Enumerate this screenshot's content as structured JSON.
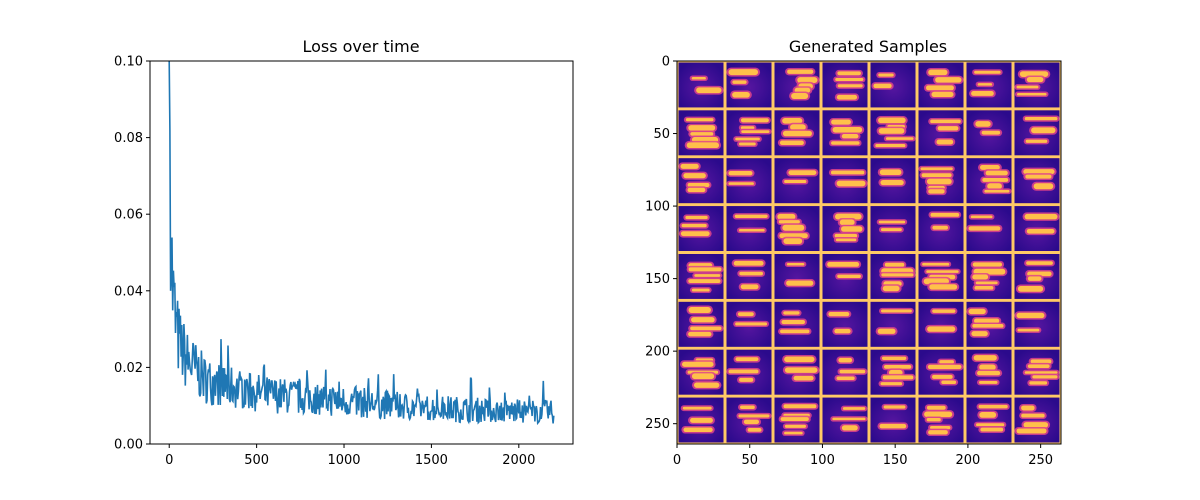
{
  "colors": {
    "line": "#1f77b4",
    "grid_line": "#ffc966",
    "tile_bg": "#2b0a8c",
    "tile_glow": "#7a1fb0",
    "streak_mid": "#e0448a",
    "streak_hot": "#ffc04a"
  },
  "chart_data": [
    {
      "type": "line",
      "title": "Loss over time",
      "xlabel": "",
      "ylabel": "",
      "xlim": [
        -110,
        2310
      ],
      "ylim": [
        0.0,
        0.1
      ],
      "xticks": [
        0,
        500,
        1000,
        1500,
        2000
      ],
      "xtick_labels": [
        "0",
        "500",
        "1000",
        "1500",
        "2000"
      ],
      "yticks": [
        0.0,
        0.02,
        0.04,
        0.06,
        0.08,
        0.1
      ],
      "ytick_labels": [
        "0.00",
        "0.02",
        "0.04",
        "0.06",
        "0.08",
        "0.10"
      ],
      "grid": false,
      "series": [
        {
          "x": [
            0,
            10,
            20,
            30,
            40,
            50,
            60,
            70,
            80,
            90,
            100,
            120,
            140,
            160,
            180,
            200,
            250,
            300,
            350,
            400,
            450,
            500,
            550,
            600,
            650,
            700,
            750,
            800,
            850,
            900,
            950,
            1000,
            1050,
            1100,
            1150,
            1200,
            1250,
            1300,
            1350,
            1400,
            1450,
            1500,
            1550,
            1600,
            1650,
            1700,
            1750,
            1800,
            1850,
            1900,
            1950,
            2000,
            2050,
            2100,
            2150,
            2200
          ],
          "y": [
            0.1,
            0.055,
            0.04,
            0.035,
            0.03,
            0.028,
            0.026,
            0.025,
            0.024,
            0.023,
            0.022,
            0.021,
            0.02,
            0.019,
            0.018,
            0.017,
            0.016,
            0.0155,
            0.015,
            0.0145,
            0.014,
            0.0135,
            0.013,
            0.0128,
            0.0126,
            0.0124,
            0.0122,
            0.012,
            0.0118,
            0.0116,
            0.0114,
            0.0112,
            0.011,
            0.0108,
            0.0106,
            0.0104,
            0.0102,
            0.01,
            0.0098,
            0.0096,
            0.0095,
            0.0094,
            0.0093,
            0.0092,
            0.0091,
            0.009,
            0.0089,
            0.0088,
            0.0087,
            0.0086,
            0.0086,
            0.0085,
            0.0085,
            0.0084,
            0.0084,
            0.0083
          ]
        }
      ]
    },
    {
      "type": "heatmap",
      "title": "Generated Samples",
      "xlabel": "",
      "ylabel": "",
      "xlim": [
        0,
        264
      ],
      "ylim": [
        264,
        0
      ],
      "xticks": [
        0,
        50,
        100,
        150,
        200,
        250
      ],
      "xtick_labels": [
        "0",
        "50",
        "100",
        "150",
        "200",
        "250"
      ],
      "yticks": [
        0,
        50,
        100,
        150,
        200,
        250
      ],
      "ytick_labels": [
        "0",
        "50",
        "100",
        "150",
        "200",
        "250"
      ],
      "grid_rows": 8,
      "grid_cols": 8,
      "colormap": "plasma"
    }
  ]
}
